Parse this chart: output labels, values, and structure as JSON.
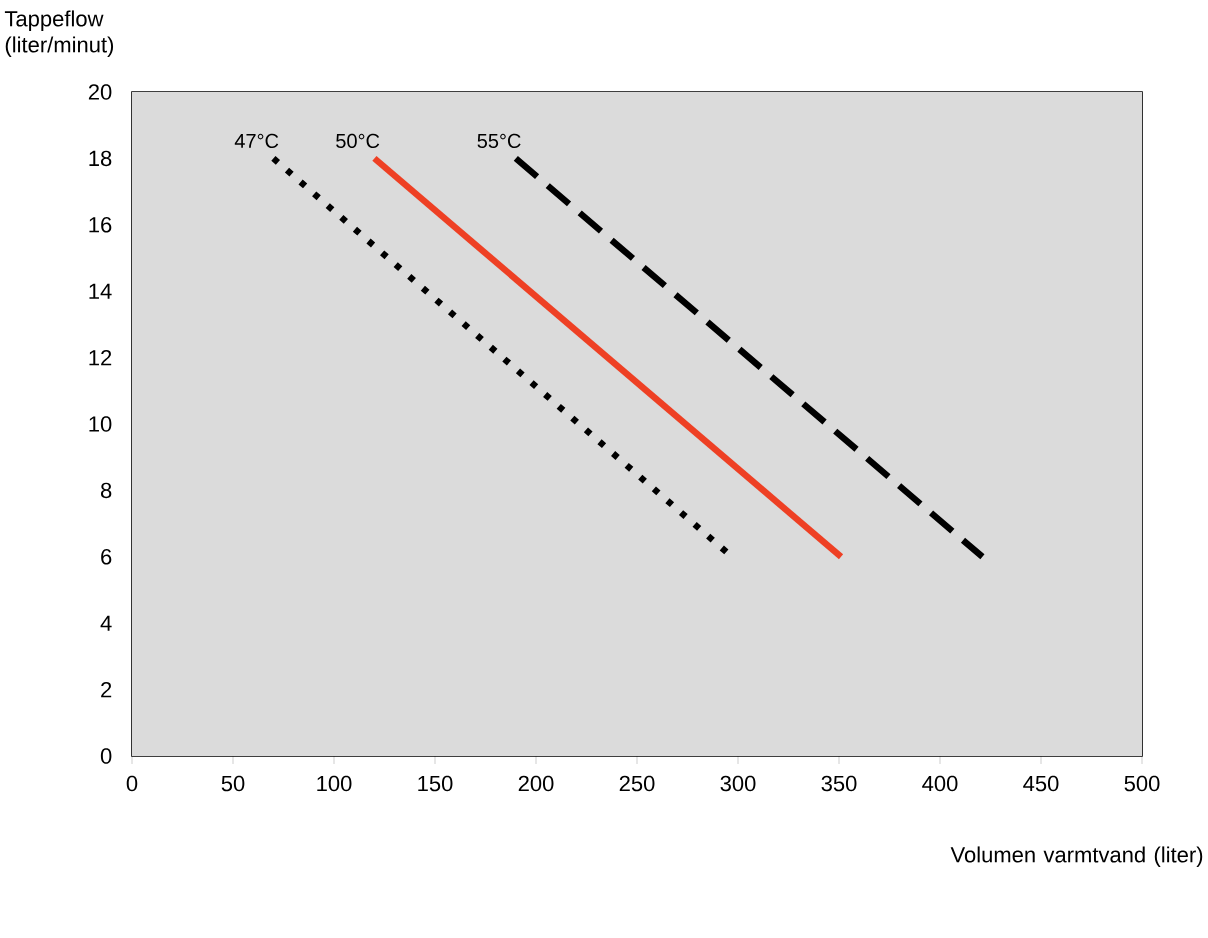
{
  "chart_data": {
    "type": "line",
    "xlabel": "Volumen varmtvand (liter)",
    "ylabel": "Tappeflow (liter/minut)",
    "xlim": [
      0,
      500
    ],
    "ylim": [
      0,
      20
    ],
    "xticks": [
      0,
      50,
      100,
      150,
      200,
      250,
      300,
      350,
      400,
      450,
      500
    ],
    "yticks": [
      0,
      2,
      4,
      6,
      8,
      10,
      12,
      14,
      16,
      18,
      20
    ],
    "legend": false,
    "series": [
      {
        "name": "47°C",
        "color": "#000000",
        "line_style": "dotted",
        "x": [
          70,
          297
        ],
        "values": [
          18,
          6
        ]
      },
      {
        "name": "50°C",
        "color": "#ee4024",
        "line_style": "solid",
        "x": [
          120,
          351
        ],
        "values": [
          18,
          6
        ]
      },
      {
        "name": "55°C",
        "color": "#000000",
        "line_style": "dashed",
        "x": [
          190,
          421
        ],
        "values": [
          18,
          6
        ]
      }
    ]
  }
}
